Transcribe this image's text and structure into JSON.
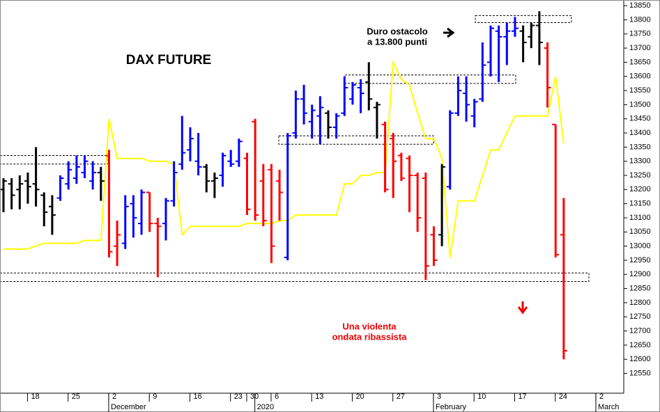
{
  "chart_data": {
    "type": "ohlc",
    "title": "DAX FUTURE",
    "categories": [
      null,
      null,
      null,
      "18",
      null,
      null,
      null,
      null,
      "25",
      null,
      null,
      null,
      null,
      "2",
      null,
      null,
      null,
      null,
      "9",
      null,
      null,
      null,
      null,
      "16",
      null,
      null,
      null,
      null,
      "23",
      null,
      "30",
      null,
      null,
      "6",
      null,
      null,
      null,
      null,
      "13",
      null,
      null,
      null,
      null,
      "20",
      null,
      null,
      null,
      null,
      "27",
      null,
      null,
      null,
      null,
      "3",
      null,
      null,
      null,
      null,
      "10",
      null,
      null,
      null,
      null,
      "17",
      null,
      null,
      null,
      null,
      "24",
      null,
      null,
      null,
      null,
      "2"
    ],
    "months": [
      null,
      null,
      null,
      null,
      null,
      null,
      null,
      null,
      null,
      null,
      null,
      null,
      null,
      "December",
      null,
      null,
      null,
      null,
      null,
      null,
      null,
      null,
      null,
      null,
      null,
      null,
      null,
      null,
      null,
      null,
      null,
      "2020",
      null,
      null,
      null,
      null,
      null,
      null,
      null,
      null,
      null,
      null,
      null,
      null,
      null,
      null,
      null,
      null,
      null,
      null,
      null,
      null,
      null,
      "February",
      null,
      null,
      null,
      null,
      null,
      null,
      null,
      null,
      null,
      null,
      null,
      null,
      null,
      null,
      null,
      null,
      null,
      null,
      null,
      "March"
    ],
    "open": [
      13200,
      13220,
      13200,
      13230,
      13220,
      13180,
      13140,
      13170,
      13220,
      13240,
      13260,
      13230,
      13260,
      13320,
      13000,
      13010,
      13150,
      13080,
      13190,
      13080,
      13080,
      13160,
      13290,
      13340,
      13300,
      13280,
      13230,
      13250,
      13300,
      13300,
      13310,
      13440,
      13230,
      13270,
      13230,
      12960,
      13400,
      13520,
      13440,
      13460,
      13470,
      13420,
      13470,
      13520,
      13560,
      13580,
      13490,
      13430,
      13380,
      13320,
      13310,
      13250,
      13240,
      13040,
      13040,
      13210,
      13470,
      13540,
      13460,
      13520,
      13650,
      13760,
      13740,
      13760,
      13760,
      13740,
      13780,
      13700,
      13430,
      13040,
      null,
      null,
      null,
      null
    ],
    "high": [
      13240,
      13240,
      13250,
      13260,
      13350,
      13190,
      13180,
      13250,
      13300,
      13320,
      13320,
      13300,
      13280,
      13340,
      13090,
      13180,
      13180,
      13200,
      13190,
      13100,
      13170,
      13300,
      13460,
      13420,
      13400,
      13290,
      13260,
      13330,
      13340,
      13380,
      13330,
      13450,
      13290,
      13290,
      13270,
      13400,
      13550,
      13570,
      13500,
      13530,
      13480,
      13470,
      13600,
      13580,
      13590,
      13650,
      13510,
      13440,
      13400,
      13330,
      13320,
      13260,
      13260,
      13070,
      13290,
      13480,
      13600,
      13600,
      13520,
      13720,
      13780,
      13780,
      13790,
      13810,
      13780,
      13790,
      13830,
      13720,
      13430,
      13170,
      null,
      null,
      null,
      null
    ],
    "low": [
      13120,
      13130,
      13130,
      13150,
      13140,
      13070,
      13040,
      13160,
      13200,
      13220,
      13240,
      13200,
      13160,
      12960,
      12930,
      12990,
      13030,
      13040,
      13050,
      12890,
      13020,
      13140,
      13270,
      13300,
      13250,
      13190,
      13170,
      13210,
      13280,
      13280,
      13110,
      13090,
      13070,
      12940,
      13090,
      12950,
      13380,
      13430,
      13380,
      13360,
      13380,
      13380,
      13460,
      13500,
      13470,
      13480,
      13380,
      13190,
      13170,
      13230,
      13120,
      13050,
      12880,
      12930,
      13000,
      13200,
      13460,
      13440,
      13420,
      13510,
      13600,
      13580,
      13640,
      13740,
      13650,
      13700,
      13640,
      13490,
      12960,
      12600,
      null,
      null,
      null,
      null
    ],
    "close": [
      13230,
      13180,
      13220,
      13210,
      13200,
      13120,
      13110,
      13240,
      13270,
      13280,
      13300,
      13260,
      13230,
      12980,
      13040,
      13140,
      13100,
      13190,
      13080,
      13070,
      13160,
      13260,
      13330,
      13380,
      13280,
      13230,
      13240,
      13320,
      13290,
      13370,
      13130,
      13110,
      13090,
      13000,
      13190,
      13390,
      13520,
      13470,
      13480,
      13490,
      13420,
      13460,
      13560,
      13570,
      13540,
      13520,
      13500,
      13200,
      13300,
      13240,
      13250,
      13100,
      12930,
      12950,
      13280,
      13470,
      13550,
      13500,
      13510,
      13640,
      13770,
      13740,
      13760,
      13770,
      13720,
      13780,
      13720,
      13560,
      12970,
      12630,
      null,
      null,
      null,
      null
    ],
    "bar_colors": [
      "#000000",
      "#000000",
      "#000000",
      "#000000",
      "#000000",
      "#000000",
      "#000000",
      "#0000ff",
      "#0000ff",
      "#0000ff",
      "#0000ff",
      "#0000ff",
      "#000000",
      "#ff0000",
      "#ff0000",
      "#0000ff",
      "#0000ff",
      "#0000ff",
      "#ff0000",
      "#ff0000",
      "#0000ff",
      "#0000ff",
      "#0000ff",
      "#0000ff",
      "#0000ff",
      "#000000",
      "#000000",
      "#0000ff",
      "#0000ff",
      "#0000ff",
      "#ff0000",
      "#ff0000",
      "#ff0000",
      "#ff0000",
      "#ff0000",
      "#0000ff",
      "#0000ff",
      "#0000ff",
      "#0000ff",
      "#0000ff",
      "#000000",
      "#0000ff",
      "#0000ff",
      "#0000ff",
      "#0000ff",
      "#000000",
      "#000000",
      "#ff0000",
      "#ff0000",
      "#ff0000",
      "#ff0000",
      "#ff0000",
      "#ff0000",
      "#ff0000",
      "#000000",
      "#0000ff",
      "#0000ff",
      "#0000ff",
      "#0000ff",
      "#0000ff",
      "#0000ff",
      "#0000ff",
      "#0000ff",
      "#0000ff",
      "#000000",
      "#000000",
      "#000000",
      "#ff0000",
      "#ff0000",
      "#ff0000",
      null,
      null,
      null,
      null
    ],
    "line_values": [
      12990,
      12990,
      12990,
      12990,
      13000,
      13010,
      13010,
      13010,
      13010,
      13010,
      13020,
      13020,
      13020,
      13450,
      13310,
      13310,
      13310,
      13310,
      13300,
      13300,
      13300,
      13290,
      13040,
      13070,
      13070,
      13070,
      13070,
      13070,
      13070,
      13070,
      13080,
      13080,
      13080,
      13080,
      13090,
      13090,
      13110,
      13110,
      13110,
      13110,
      13110,
      13110,
      13220,
      13220,
      13250,
      13250,
      13260,
      13260,
      13650,
      13590,
      13570,
      13470,
      13380,
      13380,
      13310,
      12960,
      13160,
      13160,
      13160,
      13250,
      13340,
      13340,
      13400,
      13460,
      13460,
      13460,
      13460,
      13460,
      13600,
      13360,
      null,
      null,
      null,
      null
    ],
    "line_color": "#ffff00",
    "zones": [
      [
        13290,
        13320
      ],
      [
        13360,
        13390
      ],
      [
        13575,
        13605
      ],
      [
        13790,
        13815
      ],
      [
        12875,
        12905
      ]
    ],
    "annotations": [
      {
        "lines": [
          "Duro ostacolo",
          "a 13.800 punti"
        ],
        "color": "#000000"
      },
      {
        "lines": [
          "Una violenta",
          "ondata ribassista"
        ],
        "color": "#ee0000"
      }
    ],
    "ylim": [
      12480,
      13870
    ],
    "yticks": [
      12550,
      12600,
      12650,
      12700,
      12750,
      12800,
      12850,
      12900,
      12950,
      13000,
      13050,
      13100,
      13150,
      13200,
      13250,
      13300,
      13350,
      13400,
      13450,
      13500,
      13550,
      13600,
      13650,
      13700,
      13750,
      13800,
      13850
    ]
  }
}
